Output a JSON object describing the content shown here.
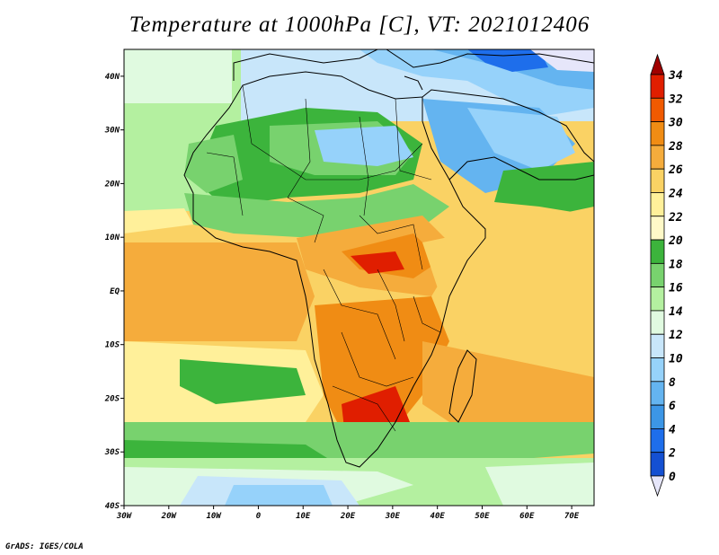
{
  "title": "Temperature at 1000hPa [C], VT: 2021012406",
  "credit": "GrADS: IGES/COLA",
  "map": {
    "lon_range": [
      -30,
      75
    ],
    "lat_range": [
      -40,
      45
    ],
    "x_ticks": [
      "30W",
      "20W",
      "10W",
      "0",
      "10E",
      "20E",
      "30E",
      "40E",
      "50E",
      "60E",
      "70E"
    ],
    "y_ticks": [
      "40N",
      "30N",
      "20N",
      "10N",
      "EQ",
      "10S",
      "20S",
      "30S",
      "40S"
    ]
  },
  "colorbar": {
    "labels": [
      "34",
      "32",
      "30",
      "28",
      "26",
      "24",
      "22",
      "20",
      "18",
      "16",
      "14",
      "12",
      "10",
      "8",
      "6",
      "4",
      "2",
      "0"
    ],
    "colors": [
      "#a00000",
      "#e01e00",
      "#f05a00",
      "#f08c14",
      "#f5ac3c",
      "#fad264",
      "#fff09a",
      "#fff9c8",
      "#3cb43c",
      "#78d26e",
      "#b4f0a0",
      "#e0fae0",
      "#c8e6fa",
      "#96d2fa",
      "#64b4f0",
      "#3c96e6",
      "#1e6eeb",
      "#1450d2",
      "#0a28a0",
      "#e6e6fa"
    ],
    "arrow_top_color": "#a00000",
    "arrow_bottom_color": "#e6e6fa"
  }
}
